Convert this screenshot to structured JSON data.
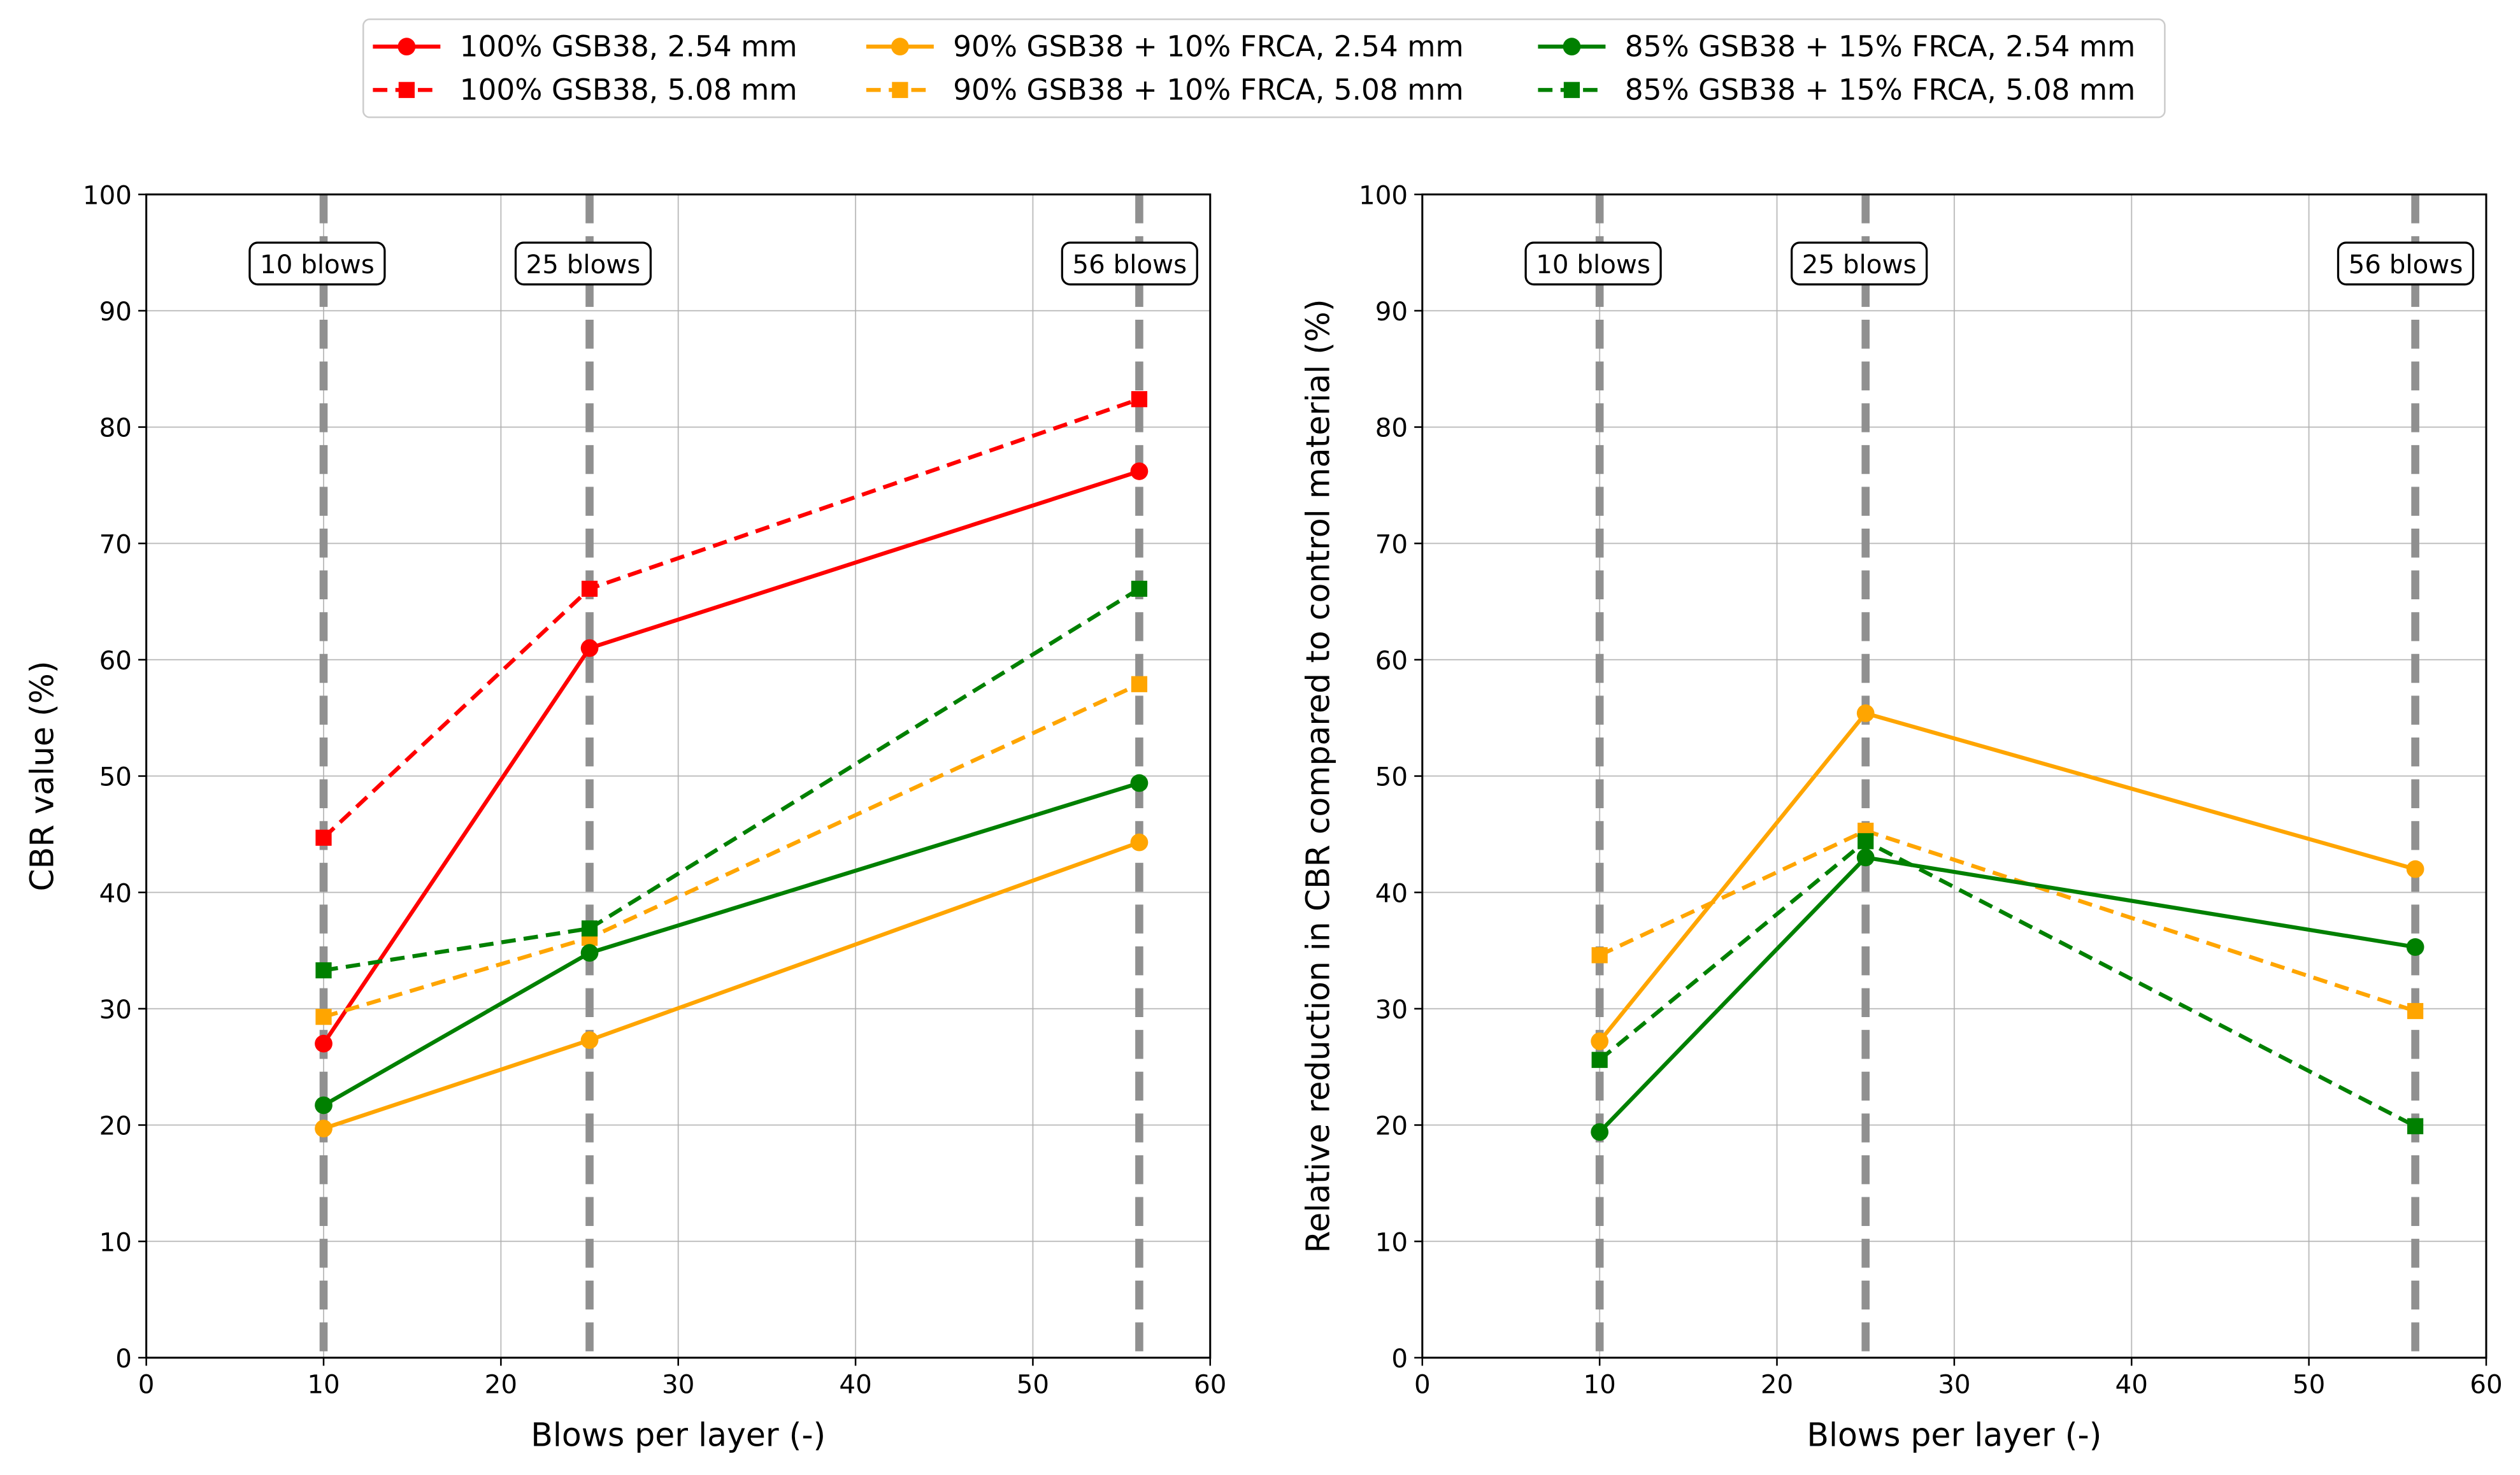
{
  "chart_data": [
    {
      "type": "line",
      "title": "",
      "xlabel": "Blows per layer (-)",
      "ylabel": "CBR value (%)",
      "xlim": [
        0,
        60
      ],
      "ylim": [
        0,
        100
      ],
      "xticks": [
        0,
        10,
        20,
        30,
        40,
        50,
        60
      ],
      "yticks": [
        0,
        10,
        20,
        30,
        40,
        50,
        60,
        70,
        80,
        90,
        100
      ],
      "grid": true,
      "x": [
        10,
        25,
        56
      ],
      "vlines": [
        {
          "x": 10,
          "label": "10 blows"
        },
        {
          "x": 25,
          "label": "25 blows"
        },
        {
          "x": 56,
          "label": "56 blows"
        }
      ],
      "series": [
        {
          "name": "100% GSB38, 2.54 mm",
          "color": "#ff0000",
          "dashed": false,
          "marker": "circle",
          "values": [
            27.0,
            61.0,
            76.2
          ]
        },
        {
          "name": "100% GSB38, 5.08 mm",
          "color": "#ff0000",
          "dashed": true,
          "marker": "square",
          "values": [
            44.7,
            66.1,
            82.4
          ]
        },
        {
          "name": "90% GSB38 + 10% FRCA, 2.54 mm",
          "color": "#ffa500",
          "dashed": false,
          "marker": "circle",
          "values": [
            19.7,
            27.3,
            44.3
          ]
        },
        {
          "name": "90% GSB38 + 10% FRCA, 5.08 mm",
          "color": "#ffa500",
          "dashed": true,
          "marker": "square",
          "values": [
            29.3,
            36.1,
            57.9
          ]
        },
        {
          "name": "85% GSB38 + 15% FRCA, 2.54 mm",
          "color": "#008000",
          "dashed": false,
          "marker": "circle",
          "values": [
            21.7,
            34.8,
            49.4
          ]
        },
        {
          "name": "85% GSB38 + 15% FRCA, 5.08 mm",
          "color": "#008000",
          "dashed": true,
          "marker": "square",
          "values": [
            33.3,
            36.9,
            66.1
          ]
        }
      ]
    },
    {
      "type": "line",
      "title": "",
      "xlabel": "Blows per layer (-)",
      "ylabel": "Relative reduction in CBR compared to control material (%)",
      "xlim": [
        0,
        60
      ],
      "ylim": [
        0,
        100
      ],
      "xticks": [
        0,
        10,
        20,
        30,
        40,
        50,
        60
      ],
      "yticks": [
        0,
        10,
        20,
        30,
        40,
        50,
        60,
        70,
        80,
        90,
        100
      ],
      "grid": true,
      "x": [
        10,
        25,
        56
      ],
      "vlines": [
        {
          "x": 10,
          "label": "10 blows"
        },
        {
          "x": 25,
          "label": "25 blows"
        },
        {
          "x": 56,
          "label": "56 blows"
        }
      ],
      "series": [
        {
          "name": "90% GSB38 + 10% FRCA, 2.54 mm",
          "color": "#ffa500",
          "dashed": false,
          "marker": "circle",
          "values": [
            27.2,
            55.4,
            42.0
          ]
        },
        {
          "name": "90% GSB38 + 10% FRCA, 5.08 mm",
          "color": "#ffa500",
          "dashed": true,
          "marker": "square",
          "values": [
            34.6,
            45.3,
            29.8
          ]
        },
        {
          "name": "85% GSB38 + 15% FRCA, 2.54 mm",
          "color": "#008000",
          "dashed": false,
          "marker": "circle",
          "values": [
            19.4,
            43.0,
            35.3
          ]
        },
        {
          "name": "85% GSB38 + 15% FRCA, 5.08 mm",
          "color": "#008000",
          "dashed": true,
          "marker": "square",
          "values": [
            25.6,
            44.4,
            19.9
          ]
        }
      ]
    }
  ],
  "legend": {
    "placement": "top-center",
    "entries": [
      {
        "name": "100% GSB38, 2.54 mm",
        "color": "#ff0000",
        "dashed": false,
        "marker": "circle"
      },
      {
        "name": "100% GSB38, 5.08 mm",
        "color": "#ff0000",
        "dashed": true,
        "marker": "square"
      },
      {
        "name": "90% GSB38 + 10% FRCA, 2.54 mm",
        "color": "#ffa500",
        "dashed": false,
        "marker": "circle"
      },
      {
        "name": "90% GSB38 + 10% FRCA, 5.08 mm",
        "color": "#ffa500",
        "dashed": true,
        "marker": "square"
      },
      {
        "name": "85% GSB38 + 15% FRCA, 2.54 mm",
        "color": "#008000",
        "dashed": false,
        "marker": "circle"
      },
      {
        "name": "85% GSB38 + 15% FRCA, 5.08 mm",
        "color": "#008000",
        "dashed": true,
        "marker": "square"
      }
    ]
  }
}
